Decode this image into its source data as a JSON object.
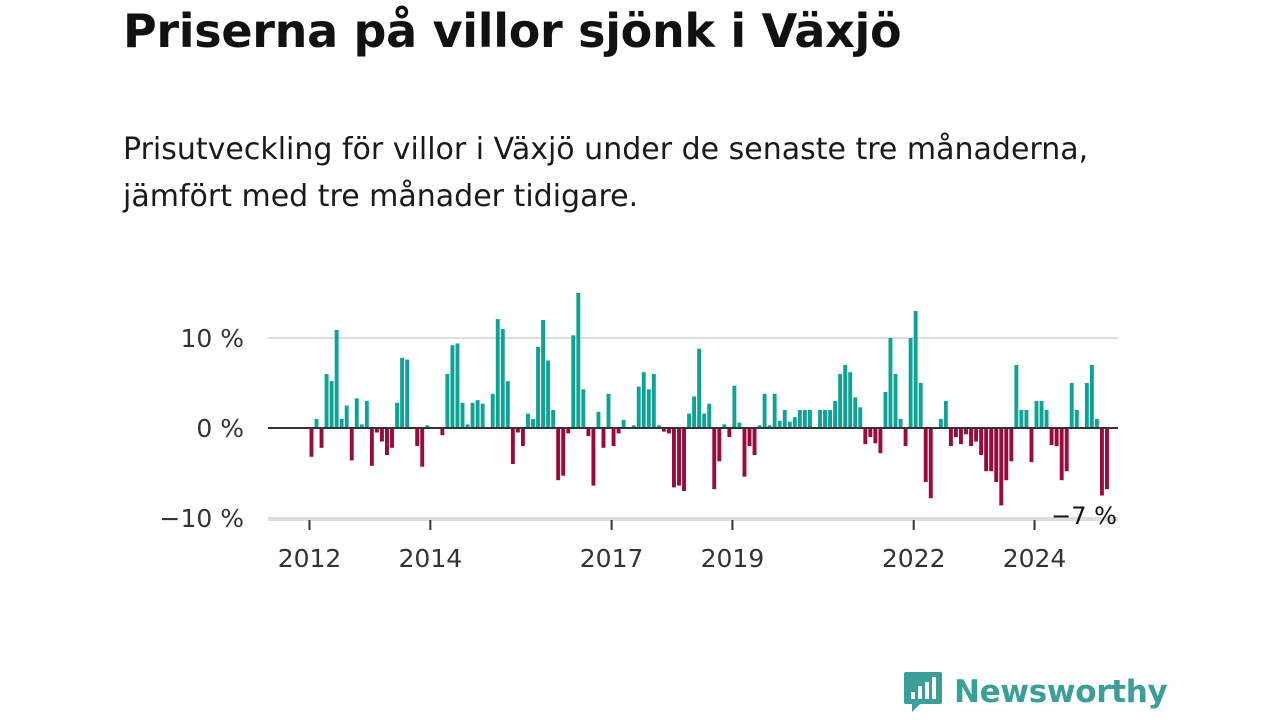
{
  "header": {
    "title": "Priserna på villor sjönk i Växjö",
    "subtitle": "Prisutveckling för villor i Växjö under de senaste tre månaderna, jämfört med tre månader tidigare."
  },
  "brand": {
    "name": "Newsworthy",
    "icon": "newsworthy-logo-icon",
    "color": "#3a9f98"
  },
  "colors": {
    "positive": "#0fa396",
    "negative": "#9b0a3c",
    "gridline": "#dddddd",
    "zero_line": "#333333"
  },
  "chart_data": {
    "type": "bar",
    "title": "Priserna på villor sjönk i Växjö",
    "subtitle": "Prisutveckling för villor i Växjö under de senaste tre månaderna, jämfört med tre månader tidigare.",
    "xlabel": "",
    "ylabel": "",
    "ylim": [
      -10,
      15
    ],
    "grid": true,
    "y_ticks": [
      {
        "value": 10,
        "label": "10 %"
      },
      {
        "value": 0,
        "label": "0 %"
      },
      {
        "value": -10,
        "label": "−10 %"
      }
    ],
    "x_ticks": [
      {
        "value": 2012,
        "label": "2012"
      },
      {
        "value": 2014,
        "label": "2014"
      },
      {
        "value": 2017,
        "label": "2017"
      },
      {
        "value": 2019,
        "label": "2019"
      },
      {
        "value": 2022,
        "label": "2022"
      },
      {
        "value": 2024,
        "label": "2024"
      }
    ],
    "start": "2012-01",
    "frequency": "monthly",
    "values": [
      -3.2,
      1.0,
      -2.2,
      6.0,
      5.2,
      10.9,
      1.0,
      2.5,
      -3.6,
      3.3,
      0.4,
      3.0,
      -4.2,
      -0.5,
      -1.5,
      -3.0,
      -2.2,
      2.8,
      7.8,
      7.6,
      0,
      -2.0,
      -4.3,
      0.3,
      0,
      0,
      -0.8,
      6.0,
      9.2,
      9.4,
      2.8,
      0.4,
      2.8,
      3.1,
      2.7,
      0,
      3.8,
      12.1,
      11.0,
      5.2,
      -4.0,
      -0.5,
      -2.0,
      1.6,
      1.0,
      9.0,
      12.0,
      7.5,
      2.0,
      -5.8,
      -5.3,
      -0.6,
      10.3,
      15.0,
      4.3,
      -0.9,
      -6.4,
      1.8,
      -2.2,
      3.8,
      -2.0,
      -0.6,
      0.9,
      0,
      0.3,
      4.6,
      6.2,
      4.3,
      6.0,
      0.3,
      -0.4,
      -0.6,
      -6.6,
      -6.4,
      -7.0,
      1.6,
      3.5,
      8.8,
      1.6,
      2.7,
      -6.8,
      -3.7,
      0.4,
      -1.0,
      4.7,
      0.6,
      -5.4,
      -2.0,
      -3.0,
      0.3,
      3.8,
      0.3,
      3.8,
      0.8,
      2.0,
      0.7,
      1.2,
      2.0,
      2.0,
      2.0,
      0,
      2.0,
      2.0,
      2.0,
      3.0,
      6.0,
      7.0,
      6.2,
      3.4,
      2.3,
      -1.8,
      -1.0,
      -1.7,
      -2.8,
      4.0,
      10.0,
      6.0,
      1.0,
      -2.0,
      10.0,
      13.0,
      5.0,
      -6.0,
      -7.8,
      0,
      1.0,
      3.0,
      -2.0,
      -1.0,
      -1.8,
      -0.7,
      -2.0,
      -1.5,
      -3.0,
      -4.8,
      -4.8,
      -6.0,
      -8.6,
      -5.8,
      -3.7,
      7.0,
      2.0,
      2.0,
      -3.8,
      3.0,
      3.0,
      2.0,
      -1.9,
      -2.0,
      -5.8,
      -4.8,
      5.0,
      2.0,
      0,
      5.0,
      7.0,
      1.0,
      -7.5,
      -6.8
    ],
    "annotations": [
      {
        "text": "−7 %",
        "index": "last"
      }
    ]
  }
}
